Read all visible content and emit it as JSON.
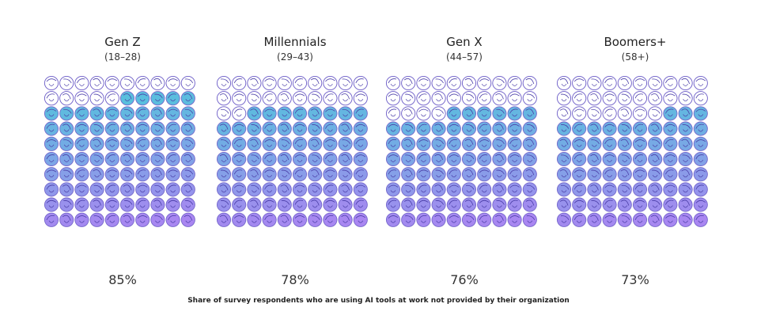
{
  "chart_data": {
    "type": "waffle",
    "caption": "Share of survey respondents who are using AI tools at work not provided by their organization",
    "grid": {
      "rows": 10,
      "cols": 10
    },
    "gradient_colors": [
      "#3dc4d8",
      "#a27cf0"
    ],
    "outline_color": "#6b5bc7",
    "panels": [
      {
        "title": "Gen Z",
        "subtitle": "(18–28)",
        "value": 85,
        "label": "85%"
      },
      {
        "title": "Millennials",
        "subtitle": "(29–43)",
        "value": 78,
        "label": "78%"
      },
      {
        "title": "Gen X",
        "subtitle": "(44–57)",
        "value": 76,
        "label": "76%"
      },
      {
        "title": "Boomers+",
        "subtitle": "(58+)",
        "value": 73,
        "label": "73%"
      }
    ]
  }
}
